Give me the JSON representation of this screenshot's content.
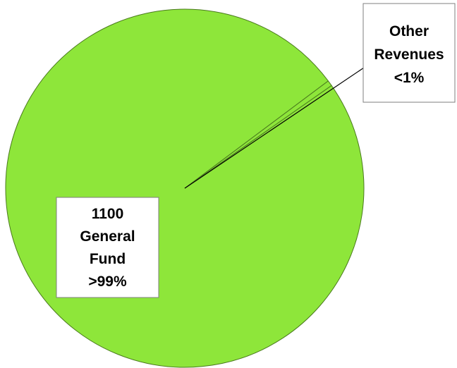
{
  "chart_data": {
    "type": "pie",
    "title": "",
    "legend": "none",
    "colors": {
      "slice": "#8ee63a",
      "slice_stroke": "#4a7a1e",
      "leader_line": "#000000",
      "label_box_border": "#7f7f7f",
      "label_box_fill": "#ffffff"
    },
    "slices": [
      {
        "label_lines": [
          "1100",
          "General",
          "Fund",
          ">99%"
        ],
        "value": 99.5
      },
      {
        "label_lines": [
          "Other",
          "Revenues",
          "<1%"
        ],
        "value": 0.5
      }
    ]
  }
}
